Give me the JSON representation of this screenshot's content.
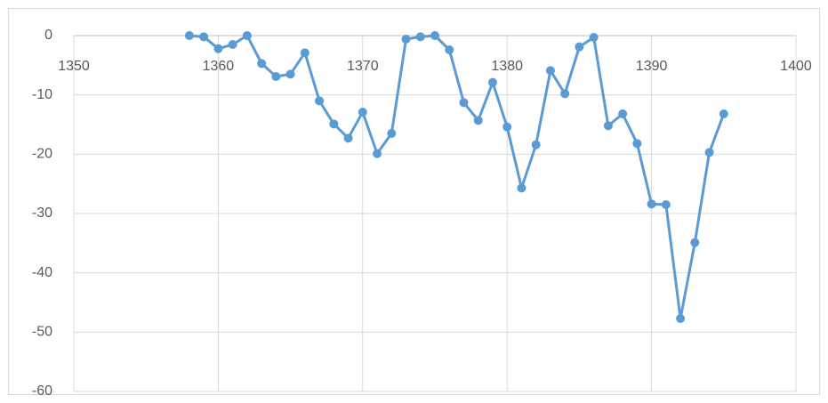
{
  "chart_data": {
    "type": "line",
    "color": "#5b9bd5",
    "grid": true,
    "x": [
      1358,
      1359,
      1360,
      1361,
      1362,
      1363,
      1364,
      1365,
      1366,
      1367,
      1368,
      1369,
      1370,
      1371,
      1372,
      1373,
      1374,
      1375,
      1376,
      1377,
      1378,
      1379,
      1380,
      1381,
      1382,
      1383,
      1384,
      1385,
      1386,
      1387,
      1388,
      1389,
      1390,
      1391,
      1392,
      1393,
      1394,
      1395
    ],
    "values": [
      0,
      -0.2,
      -2.2,
      -1.5,
      0,
      -4.7,
      -6.9,
      -6.5,
      -2.9,
      -11,
      -14.9,
      -17.3,
      -12.9,
      -19.9,
      -16.5,
      -0.6,
      -0.2,
      0,
      -2.4,
      -11.3,
      -14.3,
      -7.9,
      -15.4,
      -25.7,
      -18.4,
      -5.9,
      -9.8,
      -1.9,
      -0.3,
      -15.2,
      -13.2,
      -18.2,
      -28.4,
      -28.5,
      -47.7,
      -34.9,
      -19.7,
      -13.2
    ],
    "xlim": [
      1350,
      1400
    ],
    "xticks": [
      1350,
      1360,
      1370,
      1380,
      1390,
      1400
    ],
    "ylim": [
      -60,
      0
    ],
    "yticks": [
      0,
      -10,
      -20,
      -30,
      -40,
      -50,
      -60
    ]
  }
}
